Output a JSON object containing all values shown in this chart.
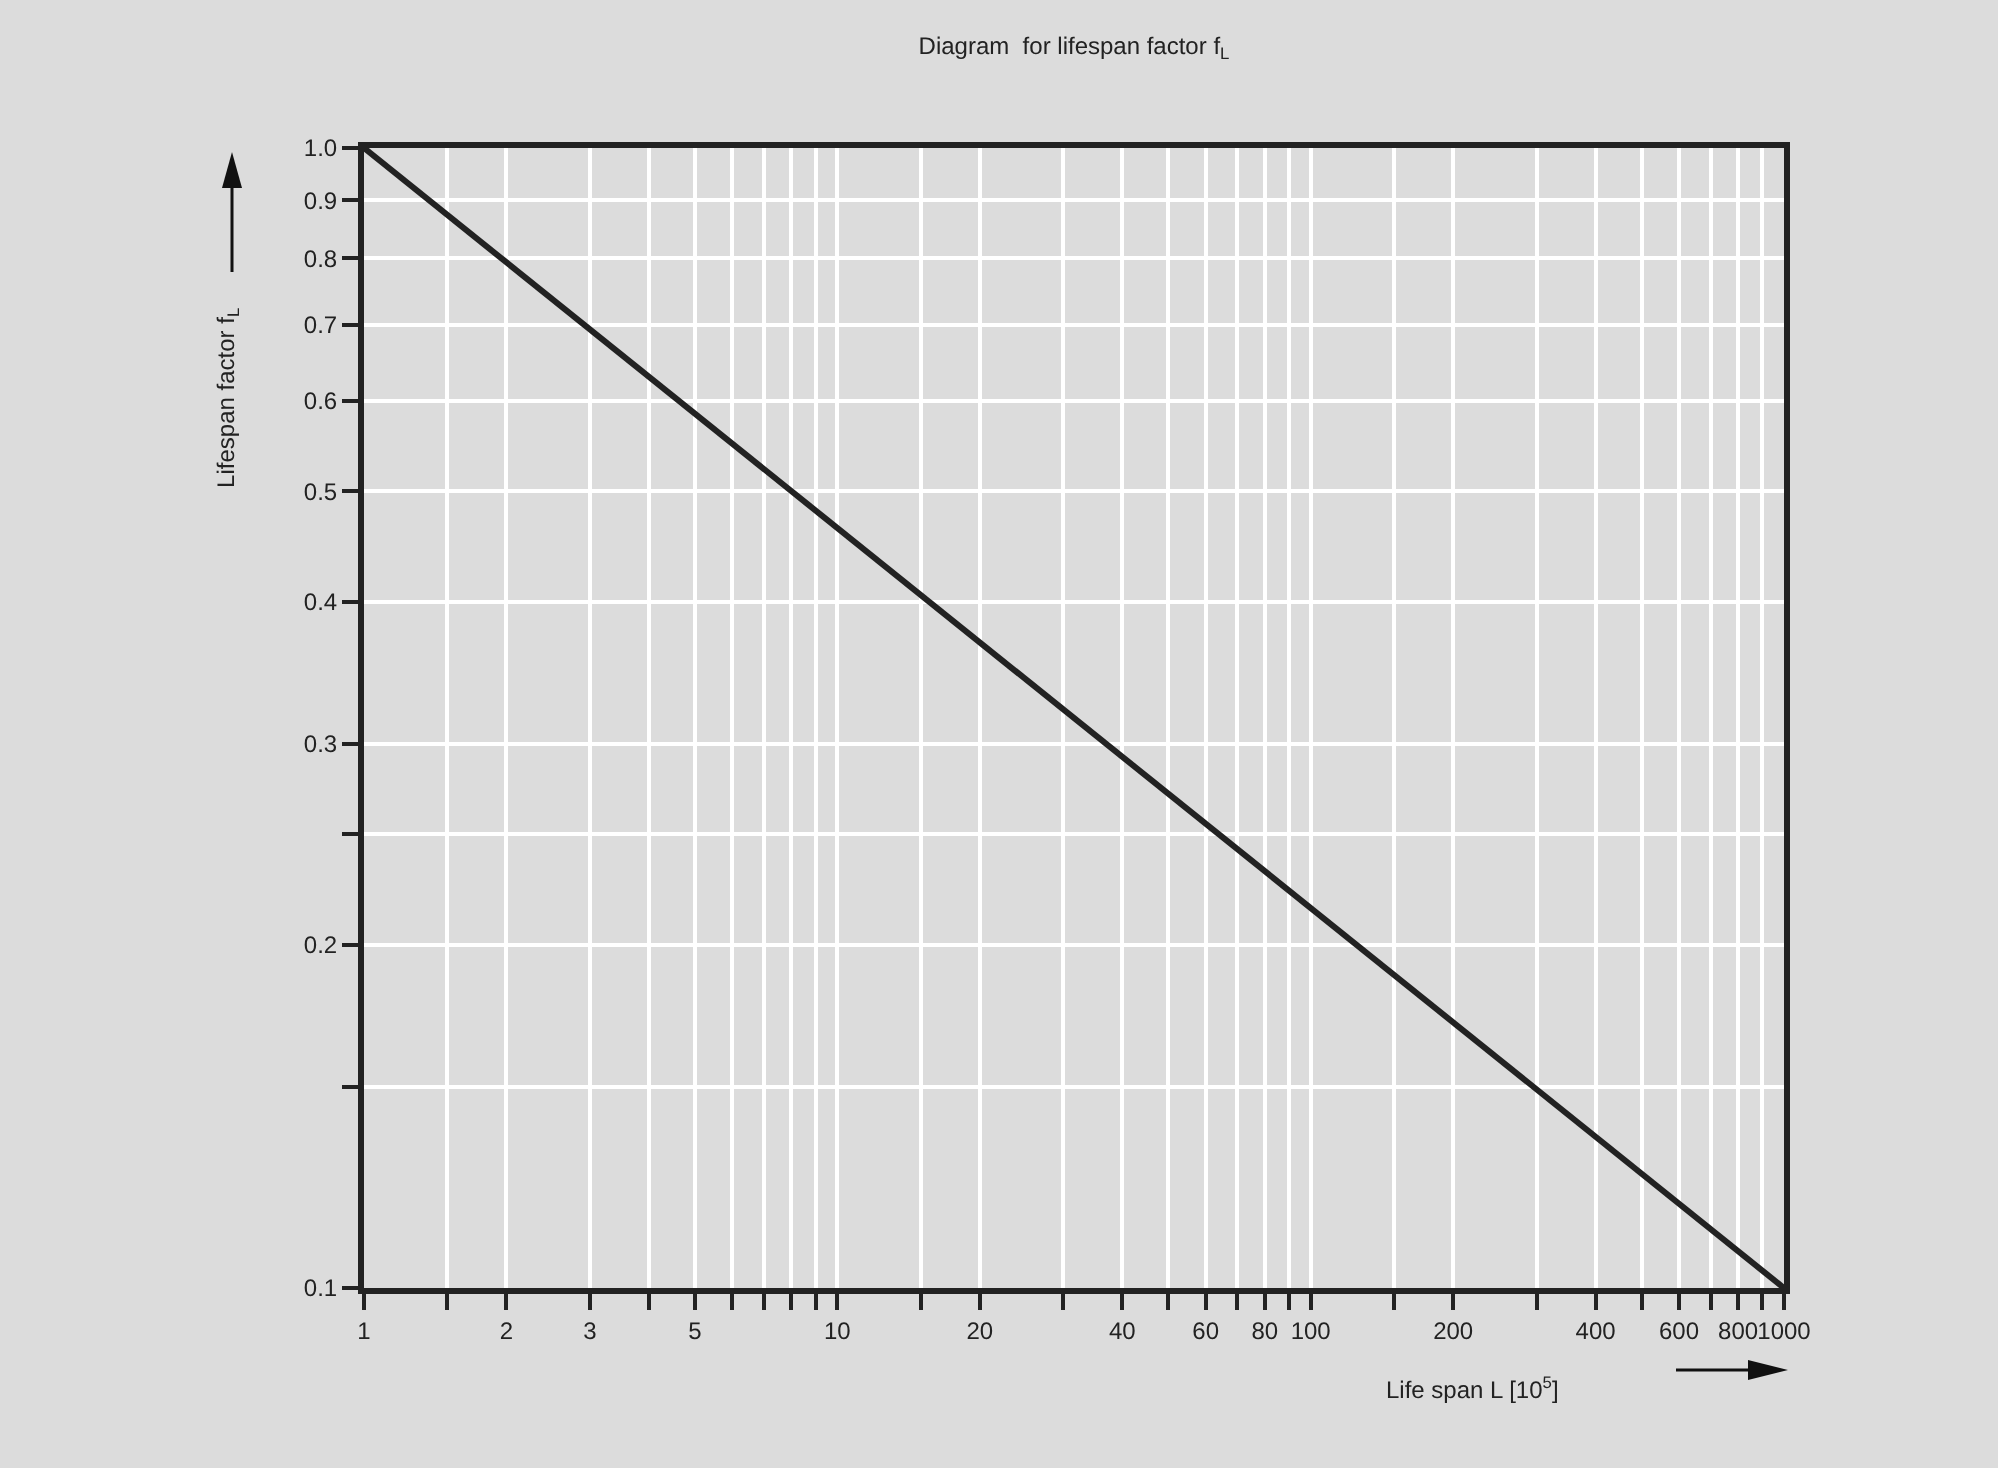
{
  "chart_data": {
    "type": "line",
    "title": "Diagram  for lifespan factor f$_{L}$",
    "xlabel": "Life span L [10$^{5}$]",
    "ylabel": "Lifespan factor f$_{L}$",
    "x": [
      1,
      1000
    ],
    "series": [
      {
        "color": "#222222",
        "values": [
          1,
          0.1
        ]
      }
    ],
    "log": "xy",
    "xlim": [
      1,
      1000
    ],
    "ylim": [
      0.1,
      1
    ],
    "xticks": [
      1,
      {
        "value": 1.5,
        "label": null
      },
      2,
      3,
      {
        "value": 4,
        "label": null
      },
      5,
      {
        "value": 6,
        "label": null
      },
      {
        "value": 7,
        "label": null
      },
      {
        "value": 8,
        "label": null
      },
      {
        "value": 9,
        "label": null
      },
      10,
      {
        "value": 15,
        "label": null
      },
      20,
      {
        "value": 30,
        "label": null
      },
      40,
      {
        "value": 50,
        "label": null
      },
      60,
      {
        "value": 70,
        "label": null
      },
      80,
      {
        "value": 90,
        "label": null
      },
      100,
      {
        "value": 150,
        "label": null
      },
      200,
      {
        "value": 300,
        "label": null
      },
      400,
      {
        "value": 500,
        "label": null
      },
      600,
      {
        "value": 700,
        "label": null
      },
      800,
      {
        "value": 900,
        "label": null
      },
      1000
    ],
    "yticks": [
      {
        "value": 0.1,
        "label": "0.1"
      },
      {
        "value": 0.15,
        "label": null
      },
      {
        "value": 0.2,
        "label": "0.2"
      },
      {
        "value": 0.25,
        "label": null
      },
      {
        "value": 0.3,
        "label": "0.3"
      },
      {
        "value": 0.4,
        "label": "0.4"
      },
      {
        "value": 0.5,
        "label": "0.5"
      },
      {
        "value": 0.6,
        "label": "0.6"
      },
      {
        "value": 0.7,
        "label": "0.7"
      },
      {
        "value": 0.8,
        "label": "0.8"
      },
      {
        "value": 0.9,
        "label": "0.9"
      },
      {
        "value": 1,
        "label": "1.0"
      }
    ],
    "grid": true,
    "marker": "none",
    "line_style": "solid"
  }
}
